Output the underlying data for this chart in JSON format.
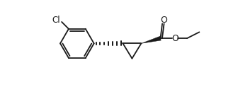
{
  "bg_color": "#ffffff",
  "line_color": "#1a1a1a",
  "lw": 1.3,
  "figsize": [
    3.36,
    1.3
  ],
  "dpi": 100,
  "xlim": [
    0,
    10
  ],
  "ylim": [
    0,
    3.87
  ]
}
